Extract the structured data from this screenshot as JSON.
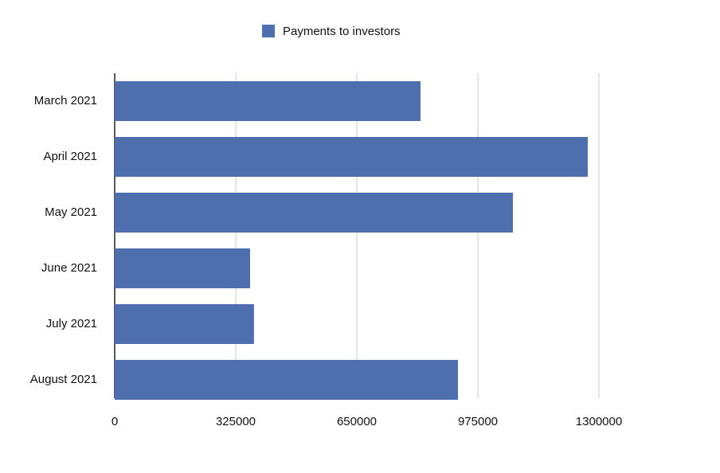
{
  "chart_data": {
    "type": "hbar",
    "categories": [
      "March 2021",
      "April 2021",
      "May 2021",
      "June 2021",
      "July 2021",
      "August 2021"
    ],
    "series": [
      {
        "name": "Payments to investors",
        "color": "#4e6fae",
        "values": [
          821000,
          1270000,
          1069000,
          363500,
          374000,
          921500
        ]
      }
    ],
    "xlim": [
      0,
      1300000
    ],
    "xticks": [
      0,
      325000,
      650000,
      975000,
      1300000
    ],
    "grid": true,
    "legend": "top"
  }
}
